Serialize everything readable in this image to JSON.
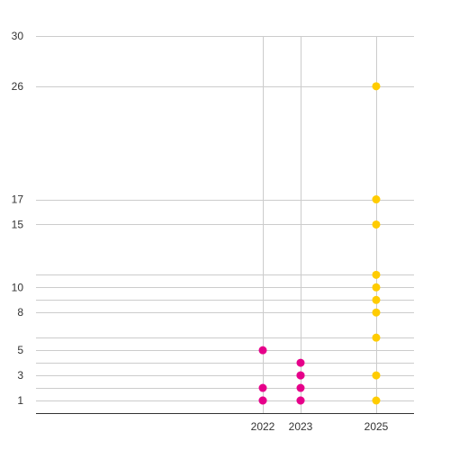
{
  "chart_data": {
    "type": "scatter",
    "x_ticks": [
      {
        "label": "2022",
        "value": 2022
      },
      {
        "label": "2023",
        "value": 2023
      },
      {
        "label": "2025",
        "value": 2025
      }
    ],
    "y_ticks": [
      {
        "label": "30",
        "value": 30
      },
      {
        "label": "26",
        "value": 26
      },
      {
        "label": "17",
        "value": 17
      },
      {
        "label": "15",
        "value": 15
      },
      {
        "label": "10",
        "value": 10
      },
      {
        "label": "8",
        "value": 8
      },
      {
        "label": "5",
        "value": 5
      },
      {
        "label": "3",
        "value": 3
      },
      {
        "label": "1",
        "value": 1
      }
    ],
    "extra_h_gridlines": [
      0,
      2,
      4,
      6,
      9,
      11
    ],
    "xlim": [
      2016,
      2026
    ],
    "ylim": [
      0,
      30
    ],
    "series": [
      {
        "color": "#e6008a",
        "points": [
          {
            "x": 2022,
            "y": 1
          },
          {
            "x": 2022,
            "y": 1
          },
          {
            "x": 2022,
            "y": 2
          },
          {
            "x": 2022,
            "y": 5
          },
          {
            "x": 2023,
            "y": 1
          },
          {
            "x": 2023,
            "y": 1
          },
          {
            "x": 2023,
            "y": 2
          },
          {
            "x": 2023,
            "y": 3
          },
          {
            "x": 2023,
            "y": 3
          },
          {
            "x": 2023,
            "y": 4
          }
        ]
      },
      {
        "color": "#ffcc00",
        "points": [
          {
            "x": 2025,
            "y": 1
          },
          {
            "x": 2025,
            "y": 3
          },
          {
            "x": 2025,
            "y": 6
          },
          {
            "x": 2025,
            "y": 8
          },
          {
            "x": 2025,
            "y": 9
          },
          {
            "x": 2025,
            "y": 10
          },
          {
            "x": 2025,
            "y": 11
          },
          {
            "x": 2025,
            "y": 15
          },
          {
            "x": 2025,
            "y": 17
          },
          {
            "x": 2025,
            "y": 26
          }
        ]
      }
    ],
    "grid": true,
    "legend": "none",
    "gridline_color": "#cccccc",
    "axis_color": "#333333"
  }
}
